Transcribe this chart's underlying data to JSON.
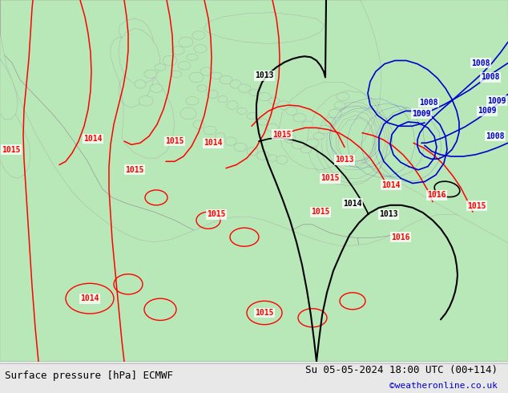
{
  "title_left": "Surface pressure [hPa] ECMWF",
  "title_right": "Su 05-05-2024 18:00 UTC (00+114)",
  "title_right2": "©weatheronline.co.uk",
  "bg_color": "#e8e8e8",
  "land_color": "#b8e8b8",
  "sea_color": "#d4d4d4",
  "contour_red": "#ff0000",
  "contour_black": "#000000",
  "contour_blue": "#0000cc",
  "footer_fontsize": 9
}
